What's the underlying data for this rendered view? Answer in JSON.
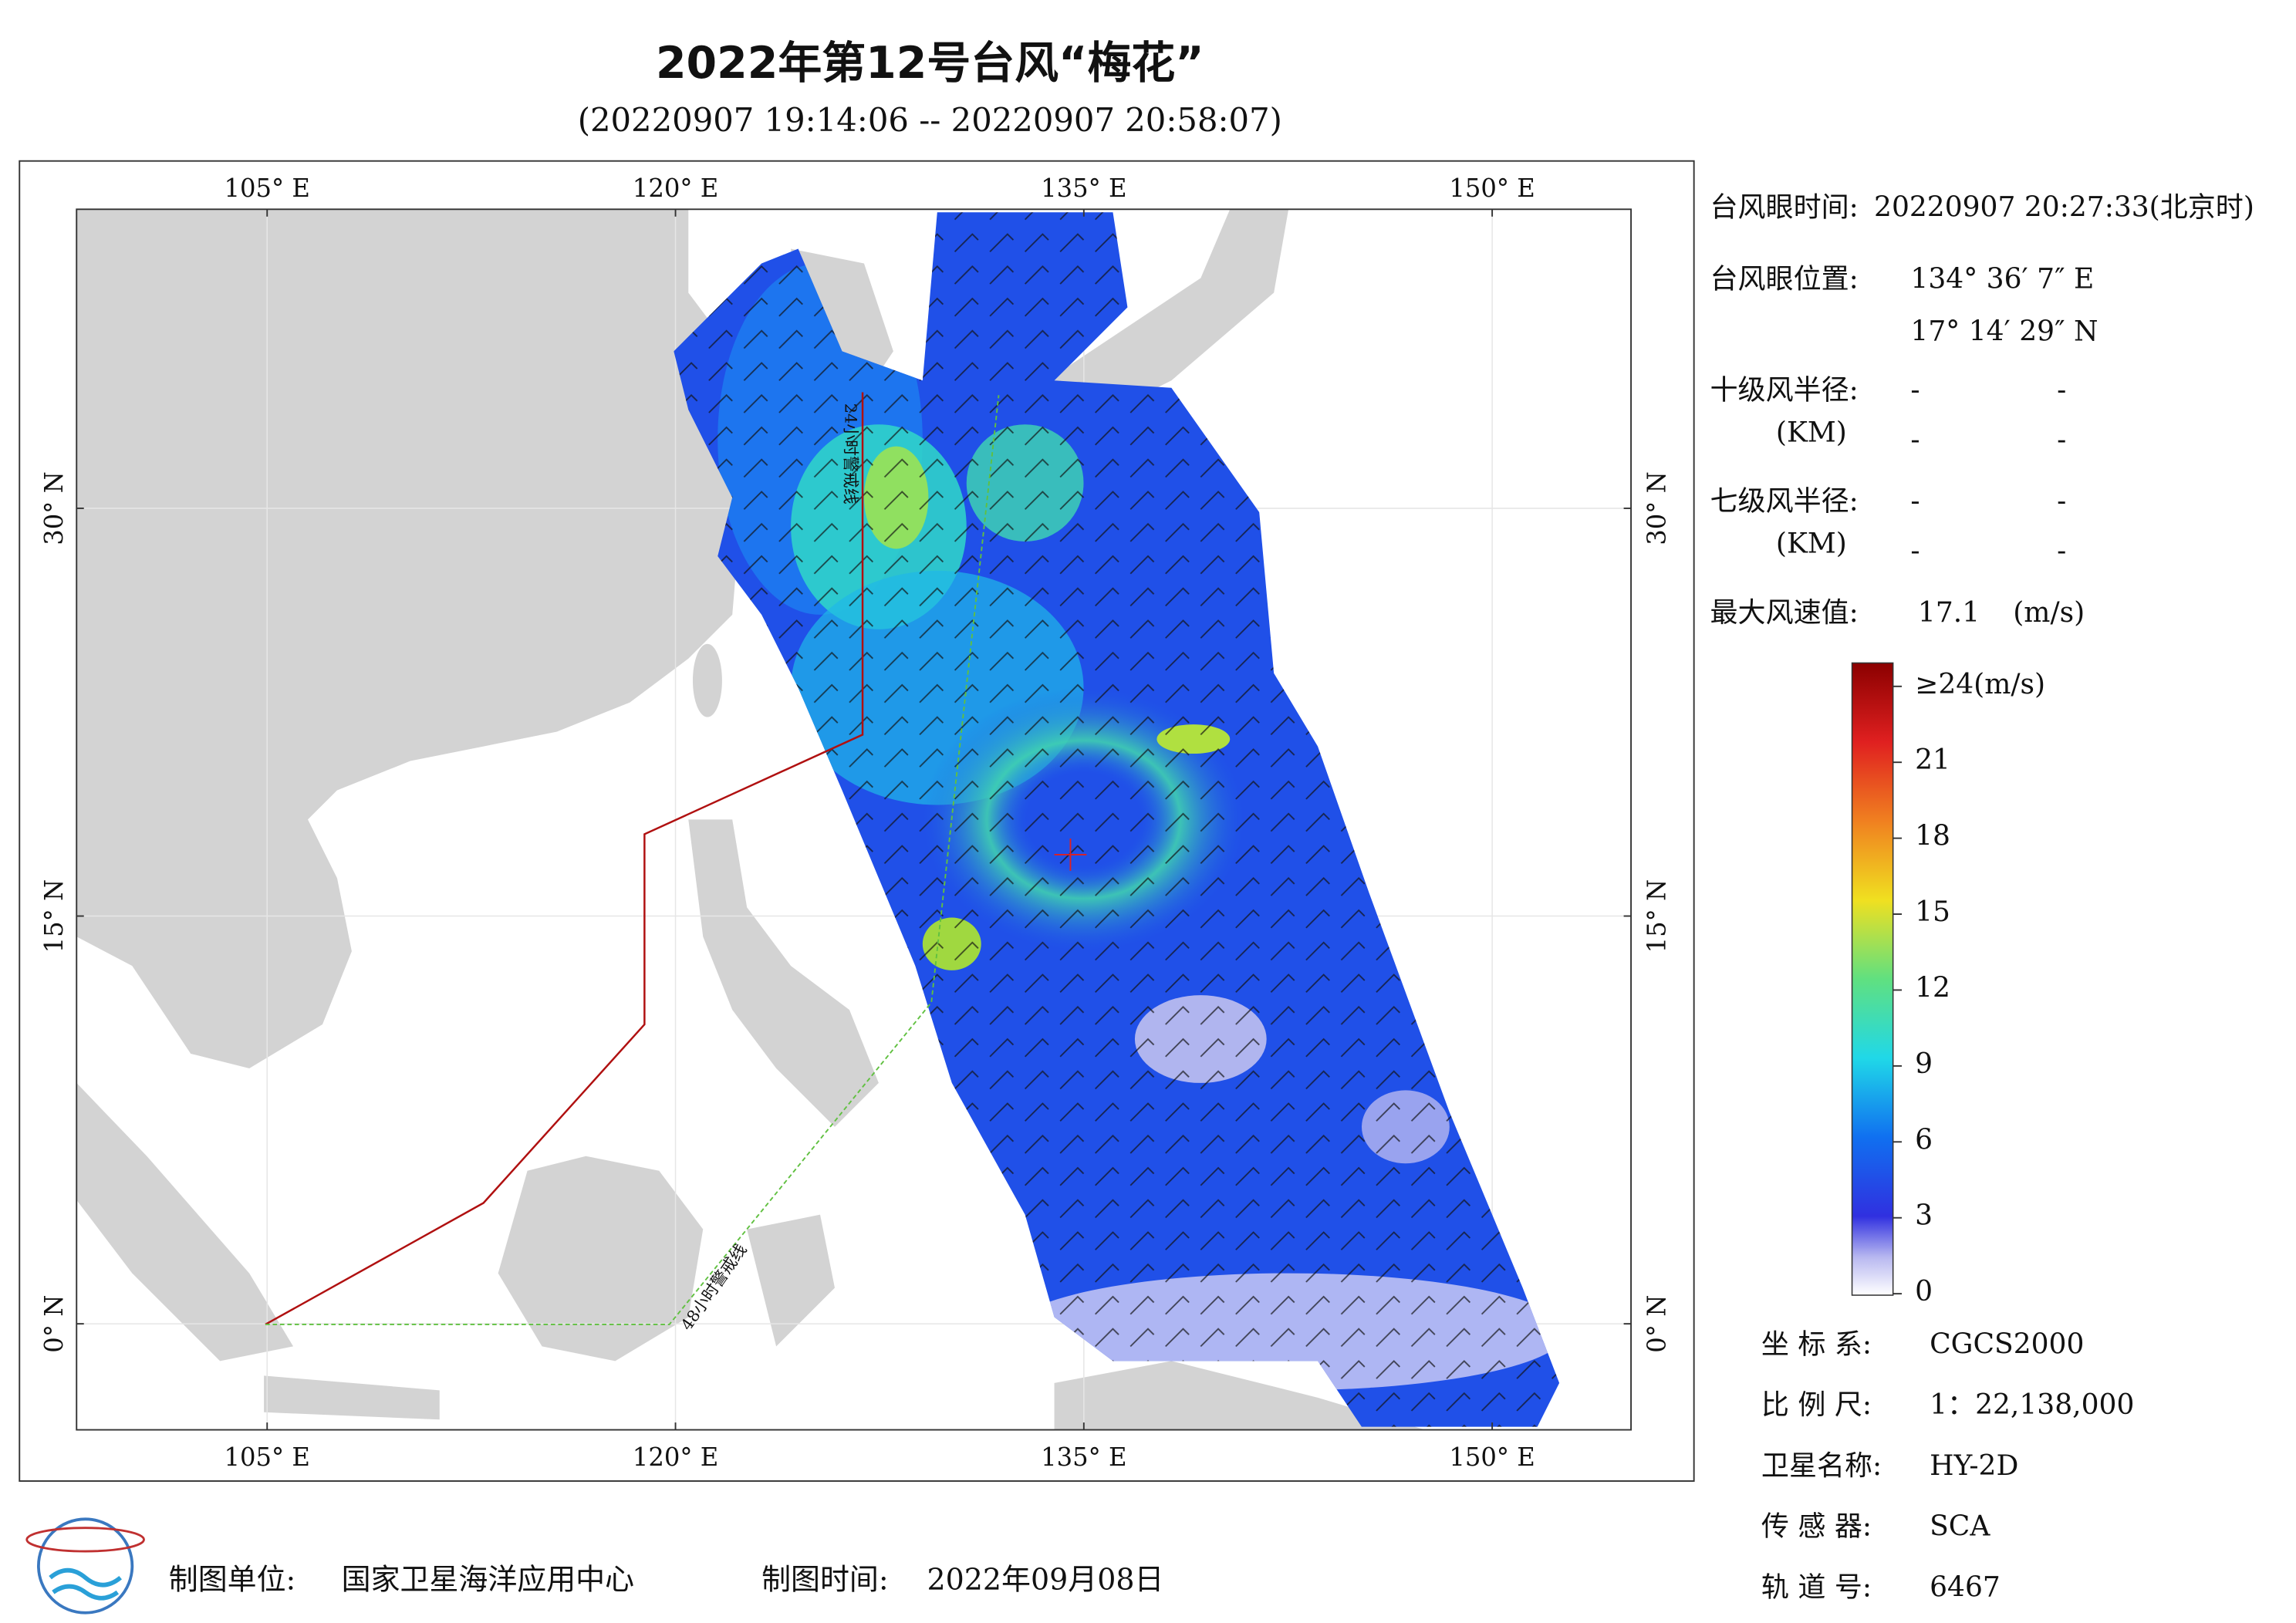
{
  "header": {
    "title": "2022年第12号台风“梅花”",
    "subtitle": "(20220907 19:14:06 -- 20220907 20:58:07)"
  },
  "map": {
    "lonlim": [
      98,
      155.1
    ],
    "latlim": [
      -3.9,
      41
    ],
    "lonticks": [
      {
        "value": 105,
        "label": "105° E"
      },
      {
        "value": 120,
        "label": "120° E"
      },
      {
        "value": 135,
        "label": "135° E"
      },
      {
        "value": 150,
        "label": "150° E"
      }
    ],
    "latticks": [
      {
        "value": 0,
        "label": "0° N"
      },
      {
        "value": 15,
        "label": "15° N"
      },
      {
        "value": 30,
        "label": "30° N"
      }
    ],
    "line24_label": "24小时警戒线",
    "line48_label": "48小时警戒线"
  },
  "info": {
    "eye_time": {
      "label": "台风眼时间:",
      "value": "20220907 20:27:33(北京时)"
    },
    "eye_position": {
      "label": "台风眼位置:",
      "lon": "134° 36′ 7″ E",
      "lat": "17° 14′ 29″ N"
    },
    "force10_radius": {
      "label": "十级风半径:",
      "unit": "(KM)",
      "values": [
        "-",
        "-",
        "-",
        "-"
      ]
    },
    "force7_radius": {
      "label": "七级风半径:",
      "unit": "(KM)",
      "values": [
        "-",
        "-",
        "-",
        "-"
      ]
    },
    "max_wind": {
      "label": "最大风速值:",
      "value": 17.1,
      "unit": "(m/s)"
    }
  },
  "colorbar": {
    "lim": [
      0,
      24
    ],
    "ticks": [
      0,
      3,
      6,
      9,
      12,
      15,
      18,
      21,
      {
        "value": 24,
        "label": "≥24(m/s)"
      }
    ]
  },
  "meta": [
    {
      "label": "坐 标 系:",
      "value": "CGCS2000"
    },
    {
      "label": "比 例 尺:",
      "value": "1：22,138,000"
    },
    {
      "label": "卫星名称:",
      "value": "HY-2D"
    },
    {
      "label": "传 感 器:",
      "value": "SCA"
    },
    {
      "label": "轨 道 号:",
      "value": 6467
    }
  ],
  "footer": {
    "org_label": "制图单位:",
    "org": "国家卫星海洋应用中心",
    "date_label": "制图时间:",
    "date": "2022年09月08日"
  }
}
